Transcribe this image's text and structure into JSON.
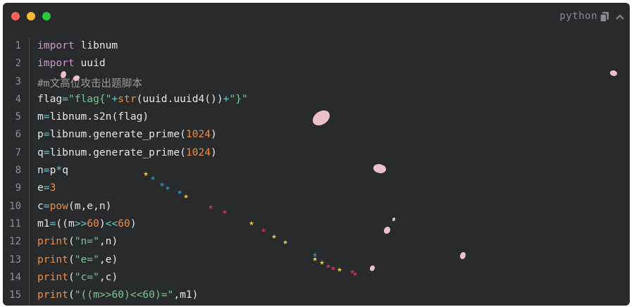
{
  "window": {
    "language_label": "python",
    "icons": {
      "copy": "copy-icon",
      "collapse": "chevron-up-icon"
    },
    "traffic_lights": [
      "#fc5f57",
      "#fdbc2e",
      "#28c840"
    ]
  },
  "code": {
    "lines": [
      {
        "n": "1",
        "tokens": [
          {
            "t": "import",
            "c": "kw"
          },
          {
            "t": " libnum",
            "c": ""
          }
        ]
      },
      {
        "n": "2",
        "tokens": [
          {
            "t": "import",
            "c": "kw"
          },
          {
            "t": " uuid",
            "c": ""
          }
        ]
      },
      {
        "n": "3",
        "tokens": [
          {
            "t": "#m文高位攻击出题脚本",
            "c": "com"
          }
        ]
      },
      {
        "n": "4",
        "tokens": [
          {
            "t": "flag",
            "c": ""
          },
          {
            "t": "=",
            "c": "op"
          },
          {
            "t": "\"flag{\"",
            "c": "str"
          },
          {
            "t": "+",
            "c": "op"
          },
          {
            "t": "str",
            "c": "fn"
          },
          {
            "t": "(uuid.uuid4())",
            "c": ""
          },
          {
            "t": "+",
            "c": "op"
          },
          {
            "t": "\"}\"",
            "c": "str"
          }
        ]
      },
      {
        "n": "5",
        "tokens": [
          {
            "t": "m",
            "c": ""
          },
          {
            "t": "=",
            "c": "op"
          },
          {
            "t": "libnum.s2n(flag)",
            "c": ""
          }
        ]
      },
      {
        "n": "6",
        "tokens": [
          {
            "t": "p",
            "c": ""
          },
          {
            "t": "=",
            "c": "op"
          },
          {
            "t": "libnum.generate_prime(",
            "c": ""
          },
          {
            "t": "1024",
            "c": "num"
          },
          {
            "t": ")",
            "c": ""
          }
        ]
      },
      {
        "n": "7",
        "tokens": [
          {
            "t": "q",
            "c": ""
          },
          {
            "t": "=",
            "c": "op"
          },
          {
            "t": "libnum.generate_prime(",
            "c": ""
          },
          {
            "t": "1024",
            "c": "num"
          },
          {
            "t": ")",
            "c": ""
          }
        ]
      },
      {
        "n": "8",
        "tokens": [
          {
            "t": "n",
            "c": ""
          },
          {
            "t": "=",
            "c": "op"
          },
          {
            "t": "p",
            "c": ""
          },
          {
            "t": "*",
            "c": "op"
          },
          {
            "t": "q",
            "c": ""
          }
        ]
      },
      {
        "n": "9",
        "tokens": [
          {
            "t": "e",
            "c": ""
          },
          {
            "t": "=",
            "c": "op"
          },
          {
            "t": "3",
            "c": "num"
          }
        ]
      },
      {
        "n": "10",
        "tokens": [
          {
            "t": "c",
            "c": ""
          },
          {
            "t": "=",
            "c": "op"
          },
          {
            "t": "pow",
            "c": "fn"
          },
          {
            "t": "(m,e,n)",
            "c": ""
          }
        ]
      },
      {
        "n": "11",
        "tokens": [
          {
            "t": "m1",
            "c": ""
          },
          {
            "t": "=",
            "c": "op"
          },
          {
            "t": "((m",
            "c": ""
          },
          {
            "t": ">>",
            "c": "op"
          },
          {
            "t": "60",
            "c": "num"
          },
          {
            "t": ")",
            "c": ""
          },
          {
            "t": "<<",
            "c": "op"
          },
          {
            "t": "60",
            "c": "num"
          },
          {
            "t": ")",
            "c": ""
          }
        ]
      },
      {
        "n": "12",
        "tokens": [
          {
            "t": "print",
            "c": "fn"
          },
          {
            "t": "(",
            "c": ""
          },
          {
            "t": "\"n=\"",
            "c": "str"
          },
          {
            "t": ",n)",
            "c": ""
          }
        ]
      },
      {
        "n": "13",
        "tokens": [
          {
            "t": "print",
            "c": "fn"
          },
          {
            "t": "(",
            "c": ""
          },
          {
            "t": "\"e=\"",
            "c": "str"
          },
          {
            "t": ",e)",
            "c": ""
          }
        ]
      },
      {
        "n": "14",
        "tokens": [
          {
            "t": "print",
            "c": "fn"
          },
          {
            "t": "(",
            "c": ""
          },
          {
            "t": "\"c=\"",
            "c": "str"
          },
          {
            "t": ",c)",
            "c": ""
          }
        ]
      },
      {
        "n": "15",
        "tokens": [
          {
            "t": "print",
            "c": "fn"
          },
          {
            "t": "(",
            "c": ""
          },
          {
            "t": "\"((m>>60)<<60)=\"",
            "c": "str"
          },
          {
            "t": ",m1)",
            "c": ""
          }
        ]
      }
    ]
  }
}
